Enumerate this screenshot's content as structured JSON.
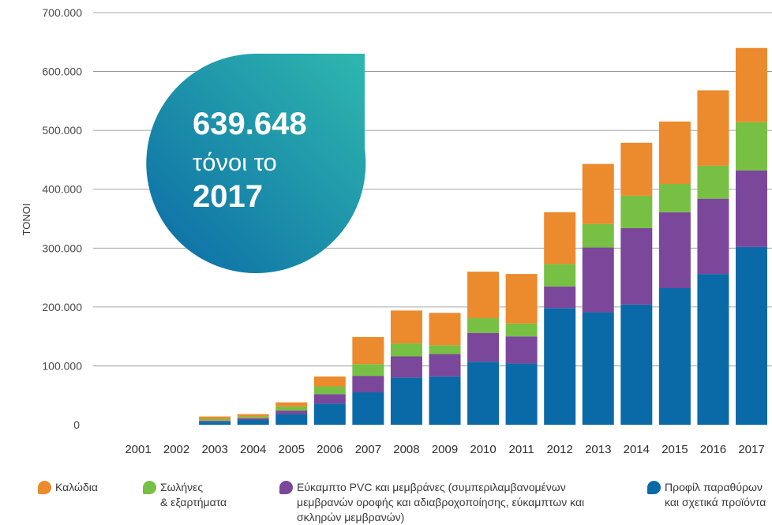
{
  "chart_data": {
    "type": "bar",
    "stacked": true,
    "categories": [
      "2001",
      "2002",
      "2003",
      "2004",
      "2005",
      "2006",
      "2007",
      "2008",
      "2009",
      "2010",
      "2011",
      "2012",
      "2013",
      "2014",
      "2015",
      "2016",
      "2017"
    ],
    "series": [
      {
        "name": "Προφίλ παραθύρων\nκαι σχετικά προϊόντα",
        "color": "#0a6aa8",
        "values": [
          0,
          0,
          5000,
          8000,
          18000,
          36000,
          55000,
          80000,
          82000,
          107000,
          104000,
          198000,
          191000,
          204000,
          232000,
          256000,
          302000
        ]
      },
      {
        "name": "Εύκαμπτο PVC και μεμβράνες (συμπεριλαμβανομένων\nμεμβρανών οροφής και αδιαβροχοποίησης, εύκαμπτων και\nσκληρών μεμβρανών)",
        "color": "#7b479a",
        "values": [
          0,
          0,
          2000,
          3000,
          6000,
          16000,
          28000,
          36000,
          38000,
          49000,
          46000,
          37000,
          110000,
          130000,
          129000,
          128000,
          130000
        ]
      },
      {
        "name": "Σωλήνες\n& εξαρτήματα",
        "color": "#77c044",
        "values": [
          0,
          0,
          3000,
          3000,
          7000,
          13000,
          20000,
          22000,
          15000,
          25000,
          22000,
          38000,
          40000,
          55000,
          48000,
          56000,
          82000
        ]
      },
      {
        "name": "Καλώδια",
        "color": "#ec8a2e",
        "values": [
          0,
          0,
          4000,
          4000,
          7000,
          17000,
          46000,
          56000,
          55000,
          79000,
          84000,
          88000,
          102000,
          90000,
          106000,
          128000,
          126000
        ]
      }
    ],
    "yticks": [
      "0",
      "100.000",
      "200.000",
      "300.000",
      "400.000",
      "500.000",
      "600.000",
      "700.000"
    ],
    "ylim": [
      0,
      700000
    ],
    "ylabel": "ΤΟΝΟΙ",
    "xlabel": "",
    "grid": true,
    "legend_position": "bottom"
  },
  "callout": {
    "number": "639.648",
    "line2": "τόνοι το",
    "year": "2017",
    "gradient_start": "#2fb8ae",
    "gradient_end": "#0b6aa6"
  },
  "legend_order": [
    3,
    2,
    1,
    0
  ]
}
